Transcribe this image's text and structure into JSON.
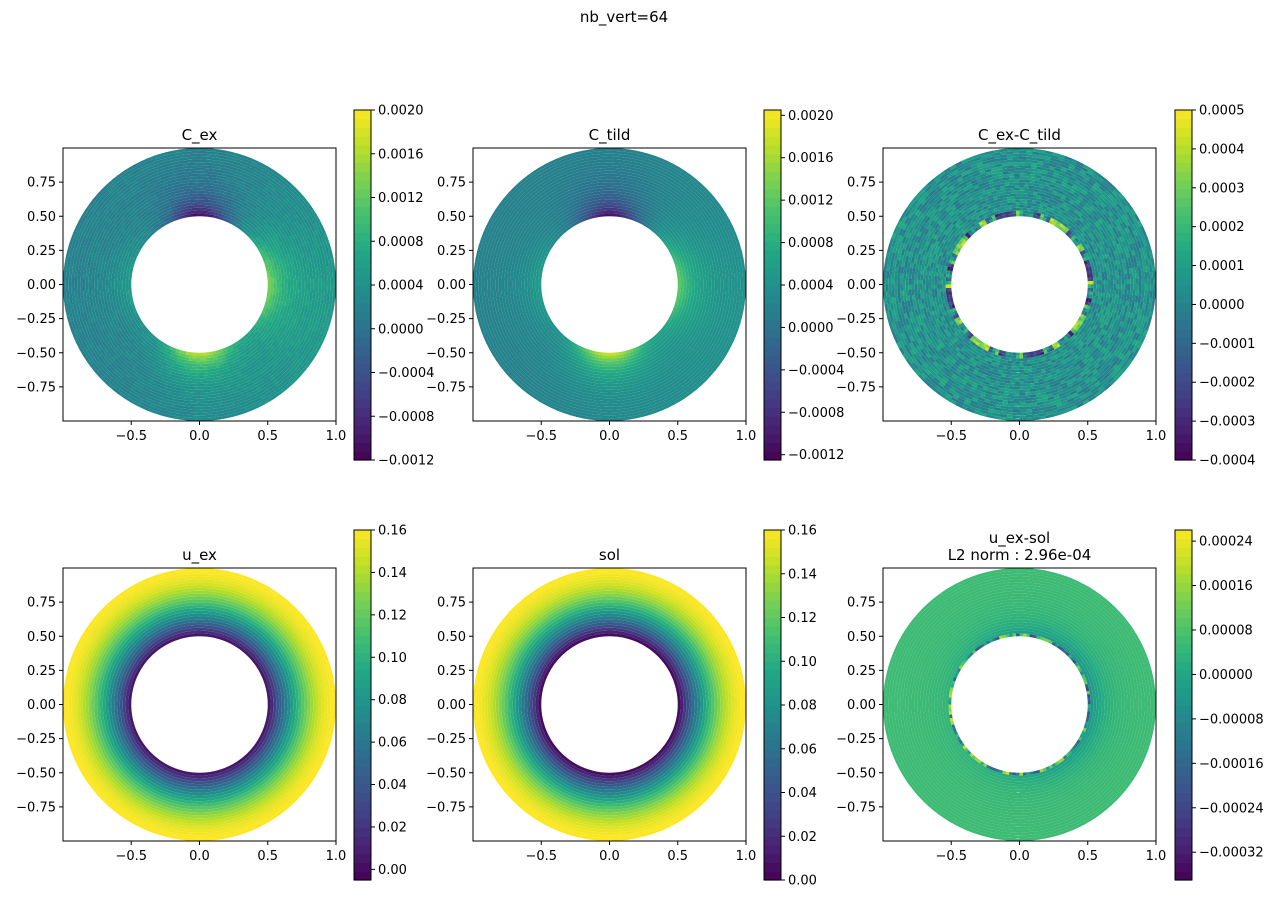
{
  "figure": {
    "suptitle": "nb_vert=64"
  },
  "colormap": [
    "#440154",
    "#482475",
    "#414487",
    "#355f8d",
    "#2a788e",
    "#21918c",
    "#22a884",
    "#44bf70",
    "#7ad151",
    "#bddf26",
    "#fde725"
  ],
  "chart_data": [
    {
      "type": "heatmap",
      "title": "C_ex",
      "field": "c_ex",
      "domain": "annulus",
      "inner_radius": 0.5,
      "outer_radius": 1.0,
      "xlim": [
        -1.0,
        1.0
      ],
      "ylim": [
        -1.0,
        1.0
      ],
      "xticks": [
        -0.5,
        0.0,
        0.5,
        1.0
      ],
      "xtick_labels": [
        "−0.5",
        "0.0",
        "0.5",
        "1.0"
      ],
      "yticks": [
        0.75,
        0.5,
        0.25,
        0.0,
        -0.25,
        -0.5,
        -0.75
      ],
      "ytick_labels": [
        "0.75",
        "0.50",
        "0.25",
        "0.00",
        "−0.25",
        "−0.50",
        "−0.75"
      ],
      "colorbar": {
        "min": -0.0012,
        "max": 0.002,
        "ticks": [
          -0.0012,
          -0.0008,
          -0.0004,
          0.0,
          0.0004,
          0.0008,
          0.0012,
          0.0016,
          0.002
        ],
        "tick_labels": [
          "−0.0012",
          "−0.0008",
          "−0.0004",
          "0.0000",
          "0.0004",
          "0.0008",
          "0.0012",
          "0.0016",
          "0.0020"
        ]
      }
    },
    {
      "type": "heatmap",
      "title": "C_tild",
      "field": "c_tild",
      "domain": "annulus",
      "inner_radius": 0.5,
      "outer_radius": 1.0,
      "xlim": [
        -1.0,
        1.0
      ],
      "ylim": [
        -1.0,
        1.0
      ],
      "xticks": [
        -0.5,
        0.0,
        0.5,
        1.0
      ],
      "xtick_labels": [
        "−0.5",
        "0.0",
        "0.5",
        "1.0"
      ],
      "yticks": [
        0.75,
        0.5,
        0.25,
        0.0,
        -0.25,
        -0.5,
        -0.75
      ],
      "ytick_labels": [
        "0.75",
        "0.50",
        "0.25",
        "0.00",
        "−0.25",
        "−0.50",
        "−0.75"
      ],
      "colorbar": {
        "min": -0.00125,
        "max": 0.00205,
        "ticks": [
          -0.0012,
          -0.0008,
          -0.0004,
          0.0,
          0.0004,
          0.0008,
          0.0012,
          0.0016,
          0.002
        ],
        "tick_labels": [
          "−0.0012",
          "−0.0008",
          "−0.0004",
          "0.0000",
          "0.0004",
          "0.0008",
          "0.0012",
          "0.0016",
          "0.0020"
        ]
      }
    },
    {
      "type": "heatmap",
      "title": "C_ex-C_tild",
      "field": "c_diff",
      "domain": "annulus",
      "inner_radius": 0.5,
      "outer_radius": 1.0,
      "xlim": [
        -1.0,
        1.0
      ],
      "ylim": [
        -1.0,
        1.0
      ],
      "xticks": [
        -0.5,
        0.0,
        0.5,
        1.0
      ],
      "xtick_labels": [
        "−0.5",
        "0.0",
        "0.5",
        "1.0"
      ],
      "yticks": [
        0.75,
        0.5,
        0.25,
        0.0,
        -0.25,
        -0.5,
        -0.75
      ],
      "ytick_labels": [
        "0.75",
        "0.50",
        "0.25",
        "0.00",
        "−0.25",
        "−0.50",
        "−0.75"
      ],
      "colorbar": {
        "min": -0.0004,
        "max": 0.0005,
        "ticks": [
          -0.0004,
          -0.0003,
          -0.0002,
          -0.0001,
          0.0,
          0.0001,
          0.0002,
          0.0003,
          0.0004,
          0.0005
        ],
        "tick_labels": [
          "−0.0004",
          "−0.0003",
          "−0.0002",
          "−0.0001",
          "0.0000",
          "0.0001",
          "0.0002",
          "0.0003",
          "0.0004",
          "0.0005"
        ]
      }
    },
    {
      "type": "heatmap",
      "title": "u_ex",
      "field": "u_ex",
      "domain": "annulus",
      "inner_radius": 0.5,
      "outer_radius": 1.0,
      "xlim": [
        -1.0,
        1.0
      ],
      "ylim": [
        -1.0,
        1.0
      ],
      "xticks": [
        -0.5,
        0.0,
        0.5,
        1.0
      ],
      "xtick_labels": [
        "−0.5",
        "0.0",
        "0.5",
        "1.0"
      ],
      "yticks": [
        0.75,
        0.5,
        0.25,
        0.0,
        -0.25,
        -0.5,
        -0.75
      ],
      "ytick_labels": [
        "0.75",
        "0.50",
        "0.25",
        "0.00",
        "−0.25",
        "−0.50",
        "−0.75"
      ],
      "colorbar": {
        "min": -0.005,
        "max": 0.16,
        "ticks": [
          0.0,
          0.02,
          0.04,
          0.06,
          0.08,
          0.1,
          0.12,
          0.14,
          0.16
        ],
        "tick_labels": [
          "0.00",
          "0.02",
          "0.04",
          "0.06",
          "0.08",
          "0.10",
          "0.12",
          "0.14",
          "0.16"
        ]
      }
    },
    {
      "type": "heatmap",
      "title": "sol",
      "field": "sol",
      "domain": "annulus",
      "inner_radius": 0.5,
      "outer_radius": 1.0,
      "xlim": [
        -1.0,
        1.0
      ],
      "ylim": [
        -1.0,
        1.0
      ],
      "xticks": [
        -0.5,
        0.0,
        0.5,
        1.0
      ],
      "xtick_labels": [
        "−0.5",
        "0.0",
        "0.5",
        "1.0"
      ],
      "yticks": [
        0.75,
        0.5,
        0.25,
        0.0,
        -0.25,
        -0.5,
        -0.75
      ],
      "ytick_labels": [
        "0.75",
        "0.50",
        "0.25",
        "0.00",
        "−0.25",
        "−0.50",
        "−0.75"
      ],
      "colorbar": {
        "min": 0.0,
        "max": 0.16,
        "ticks": [
          0.0,
          0.02,
          0.04,
          0.06,
          0.08,
          0.1,
          0.12,
          0.14,
          0.16
        ],
        "tick_labels": [
          "0.00",
          "0.02",
          "0.04",
          "0.06",
          "0.08",
          "0.10",
          "0.12",
          "0.14",
          "0.16"
        ]
      }
    },
    {
      "type": "heatmap",
      "title": "u_ex-sol",
      "subtitle": "L2 norm : 2.96e-04",
      "field": "u_diff",
      "domain": "annulus",
      "inner_radius": 0.5,
      "outer_radius": 1.0,
      "xlim": [
        -1.0,
        1.0
      ],
      "ylim": [
        -1.0,
        1.0
      ],
      "xticks": [
        -0.5,
        0.0,
        0.5,
        1.0
      ],
      "xtick_labels": [
        "−0.5",
        "0.0",
        "0.5",
        "1.0"
      ],
      "yticks": [
        0.75,
        0.5,
        0.25,
        0.0,
        -0.25,
        -0.5,
        -0.75
      ],
      "ytick_labels": [
        "0.75",
        "0.50",
        "0.25",
        "0.00",
        "−0.25",
        "−0.50",
        "−0.75"
      ],
      "colorbar": {
        "min": -0.00037,
        "max": 0.00026,
        "ticks": [
          -0.00032,
          -0.00024,
          -0.00016,
          -8e-05,
          0.0,
          8e-05,
          0.00016,
          0.00024
        ],
        "tick_labels": [
          "−0.00032",
          "−0.00024",
          "−0.00016",
          "−0.00008",
          "0.00000",
          "0.00008",
          "0.00016",
          "0.00024"
        ]
      }
    }
  ]
}
